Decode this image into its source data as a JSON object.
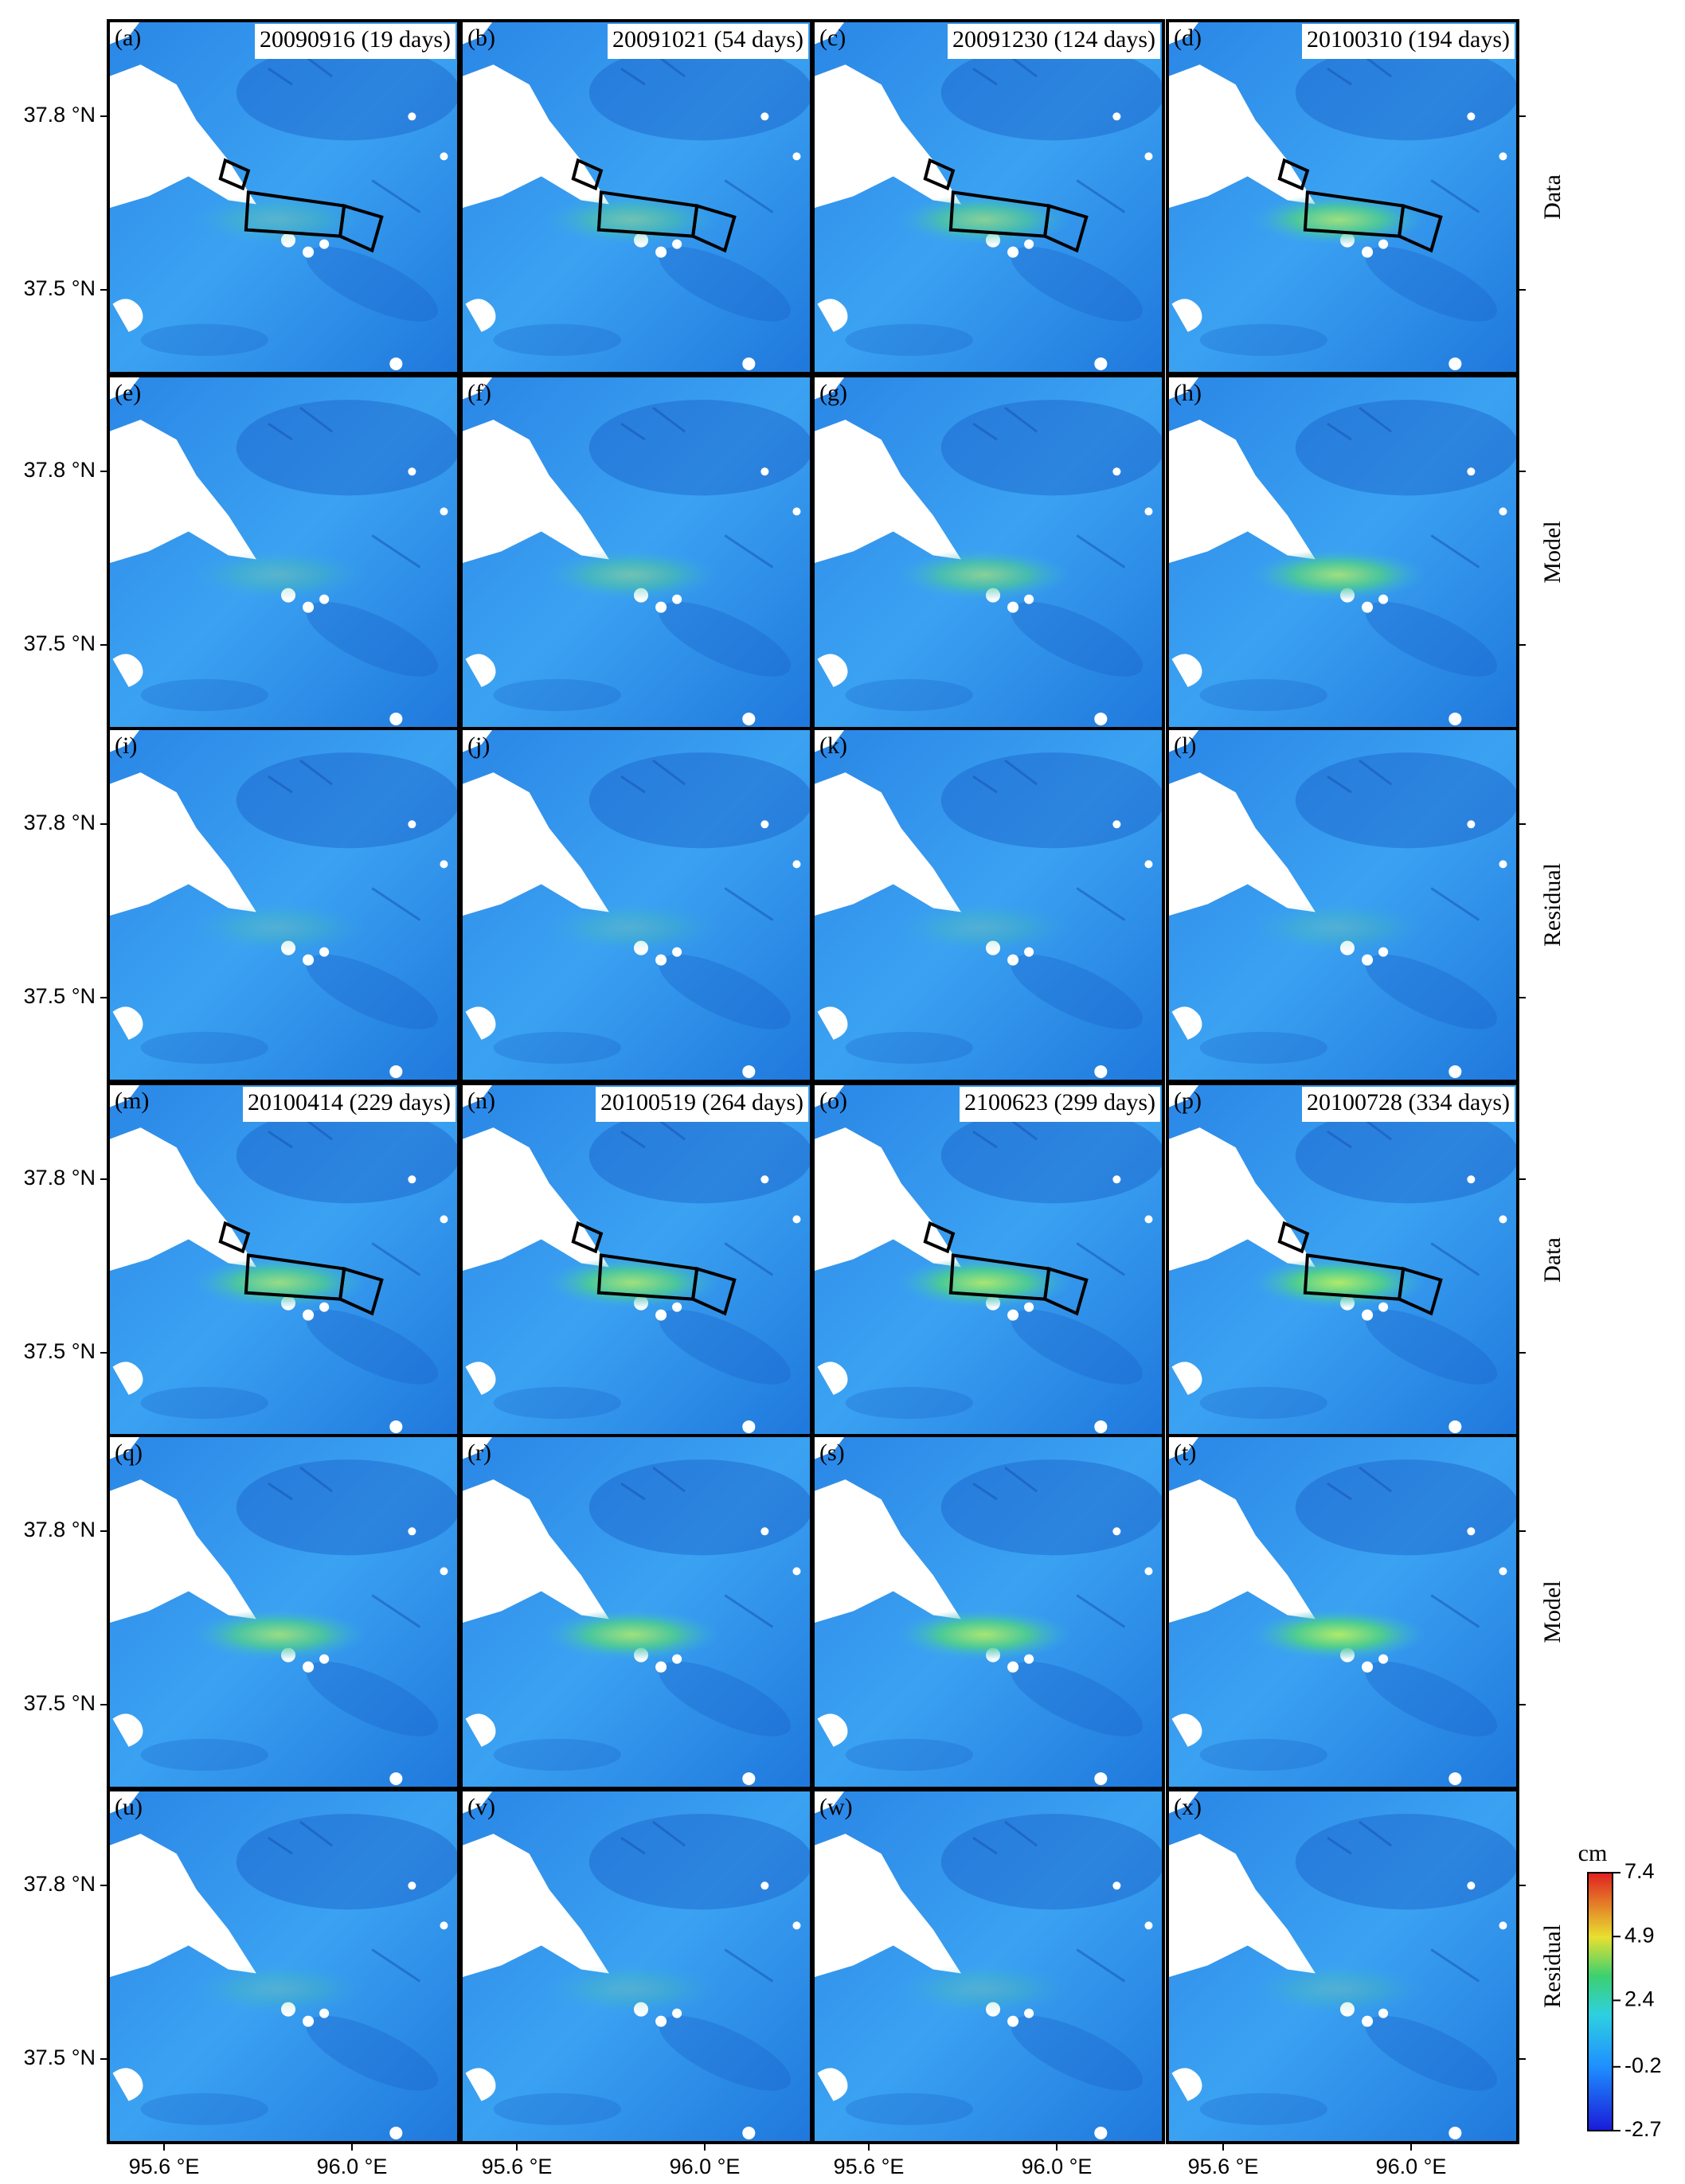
{
  "figure": {
    "panels": [
      {
        "label": "(a)",
        "title": "20090916 (19 days)"
      },
      {
        "label": "(b)",
        "title": "20091021 (54 days)"
      },
      {
        "label": "(c)",
        "title": "20091230 (124 days)"
      },
      {
        "label": "(d)",
        "title": "20100310 (194 days)"
      },
      {
        "label": "(e)"
      },
      {
        "label": "(f)"
      },
      {
        "label": "(g)"
      },
      {
        "label": "(h)"
      },
      {
        "label": "(i)"
      },
      {
        "label": "(j)"
      },
      {
        "label": "(k)"
      },
      {
        "label": "(l)"
      },
      {
        "label": "(m)",
        "title": "20100414 (229 days)"
      },
      {
        "label": "(n)",
        "title": "20100519 (264 days)"
      },
      {
        "label": "(o)",
        "title": "2100623 (299 days)"
      },
      {
        "label": "(p)",
        "title": "20100728 (334 days)"
      },
      {
        "label": "(q)"
      },
      {
        "label": "(r)"
      },
      {
        "label": "(s)"
      },
      {
        "label": "(t)"
      },
      {
        "label": "(u)"
      },
      {
        "label": "(v)"
      },
      {
        "label": "(w)"
      },
      {
        "label": "(x)"
      }
    ],
    "row_labels": [
      "Data",
      "Model",
      "Residual",
      "Data",
      "Model",
      "Residual"
    ],
    "y_tick_labels": [
      "37.8 °N",
      "37.5 °N"
    ],
    "x_tick_labels": [
      "95.6 °E",
      "96.0 °E"
    ],
    "colorbar": {
      "unit": "cm",
      "range": [
        -2.7,
        7.4
      ],
      "ticks": [
        7.4,
        4.9,
        2.4,
        -0.2,
        -2.7
      ]
    }
  }
}
